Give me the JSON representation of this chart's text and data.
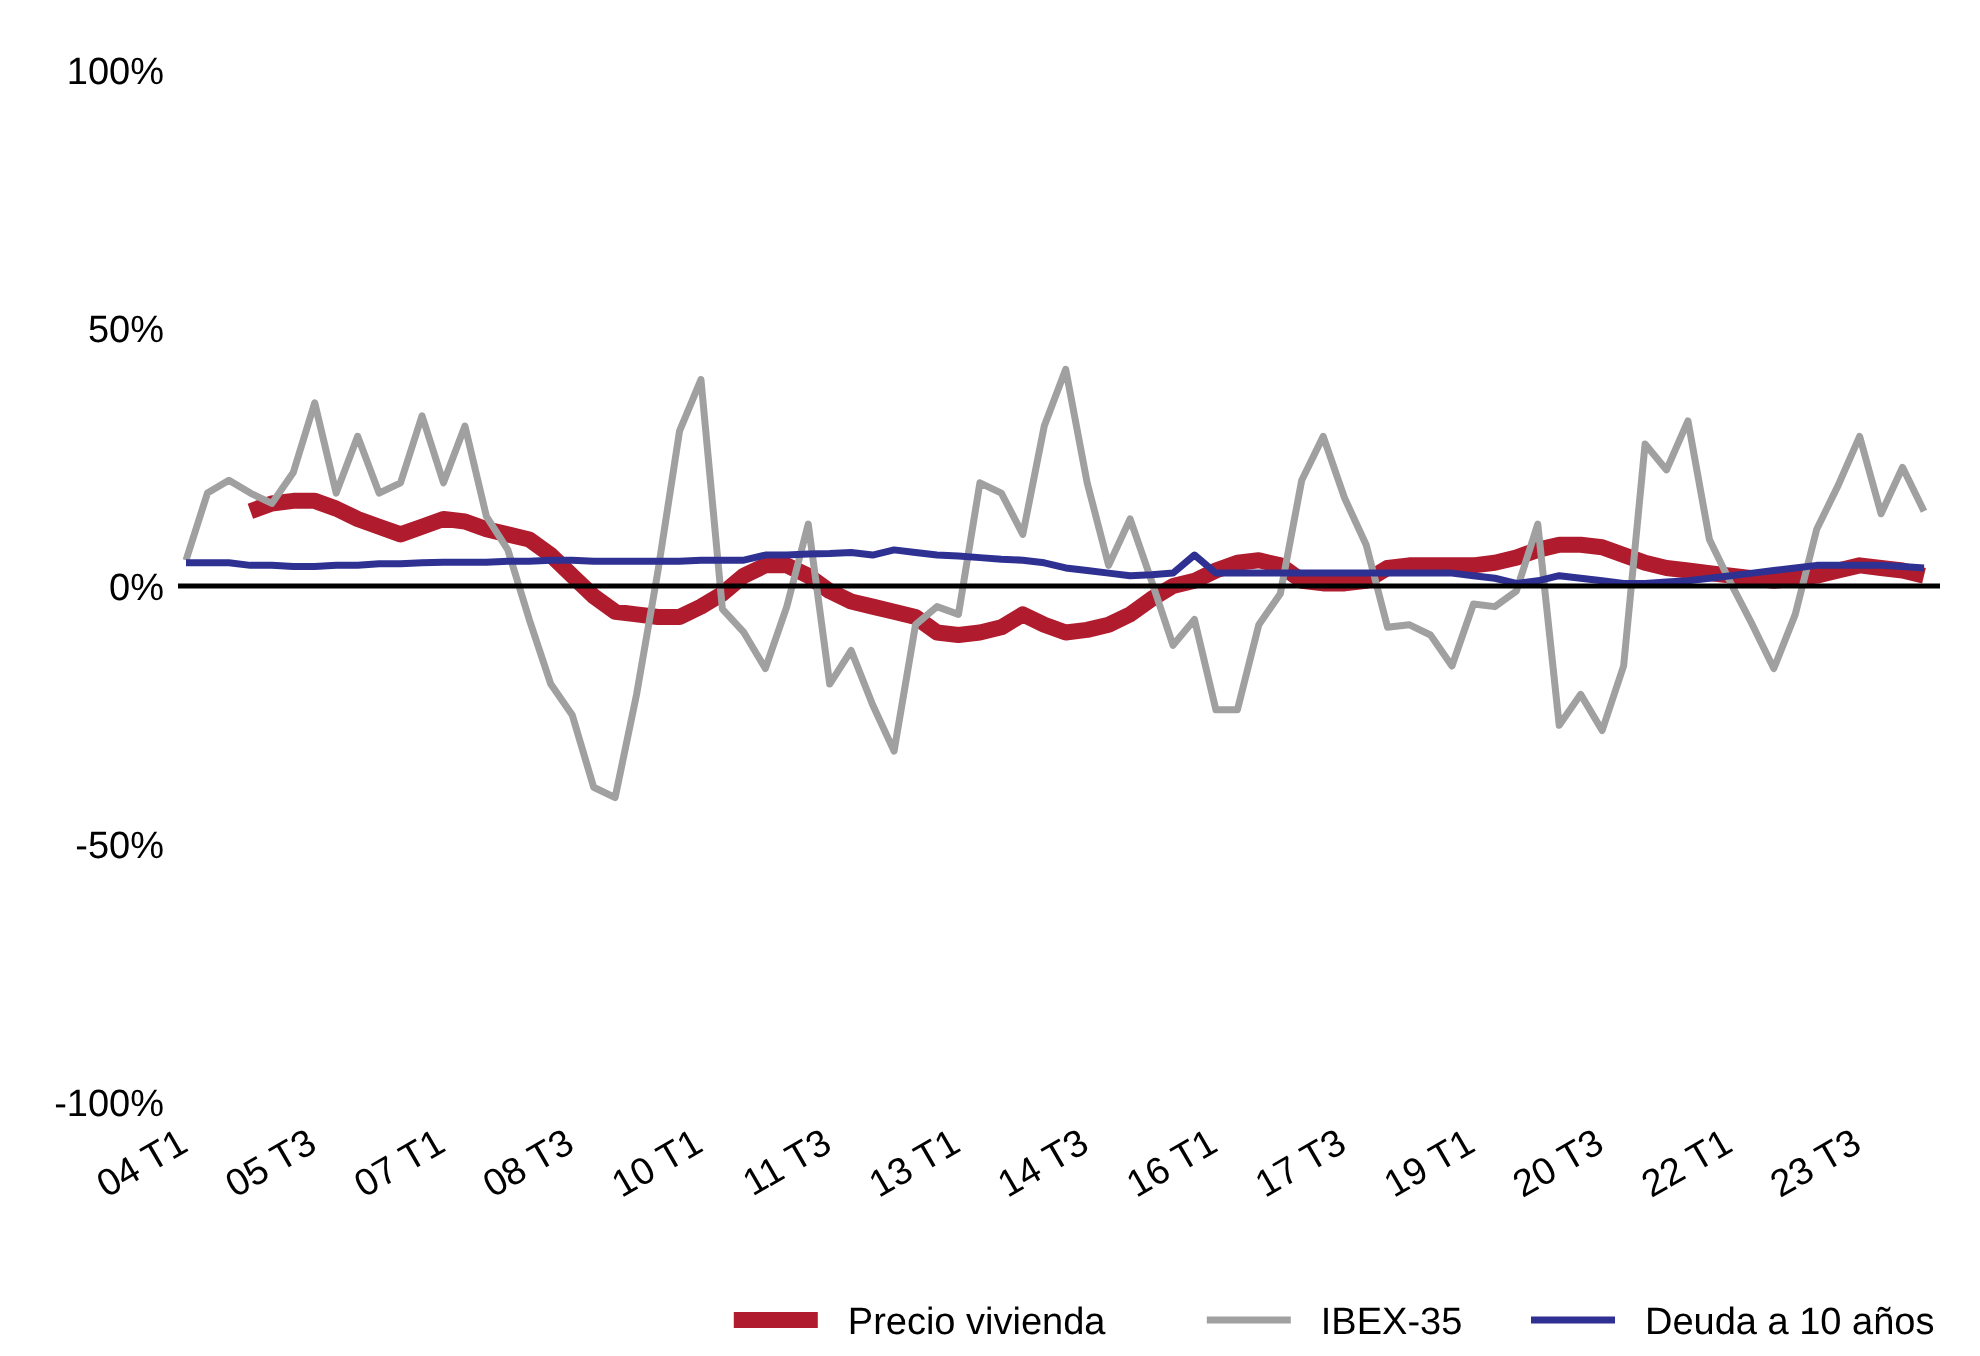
{
  "chart_data": {
    "type": "line",
    "categories": [
      "04 T1",
      null,
      null,
      null,
      null,
      null,
      "05 T3",
      null,
      null,
      null,
      null,
      null,
      "07 T1",
      null,
      null,
      null,
      null,
      null,
      "08 T3",
      null,
      null,
      null,
      null,
      null,
      "10 T1",
      null,
      null,
      null,
      null,
      null,
      "11 T3",
      null,
      null,
      null,
      null,
      null,
      "13 T1",
      null,
      null,
      null,
      null,
      null,
      "14 T3",
      null,
      null,
      null,
      null,
      null,
      "16 T1",
      null,
      null,
      null,
      null,
      null,
      "17 T3",
      null,
      null,
      null,
      null,
      null,
      "19 T1",
      null,
      null,
      null,
      null,
      null,
      "20 T3",
      null,
      null,
      null,
      null,
      null,
      "22 T1",
      null,
      null,
      null,
      null,
      null,
      "23 T3",
      null,
      null,
      null
    ],
    "series": [
      {
        "name": "Precio vivienda",
        "color": "#b01c2e",
        "values": [
          null,
          null,
          null,
          14.5,
          16,
          16.5,
          16.5,
          15,
          13,
          11.5,
          10,
          11.5,
          13,
          12.5,
          11,
          10,
          9,
          6,
          2,
          -2,
          -5,
          -5.5,
          -6,
          -6,
          -4,
          -1.5,
          2,
          4,
          4,
          2,
          -1,
          -3,
          -4,
          -5,
          -6,
          -9,
          -9.5,
          -9,
          -8,
          -5.5,
          -7.5,
          -9,
          -8.5,
          -7.5,
          -5.5,
          -2.5,
          0,
          1,
          3,
          4.5,
          5,
          4,
          1,
          0.5,
          0.5,
          1,
          3.5,
          4,
          4,
          4,
          4,
          4.5,
          5.5,
          7,
          8,
          8,
          7.5,
          6,
          4.5,
          3.5,
          3,
          2.5,
          2,
          1.5,
          1,
          1.5,
          2,
          3,
          4,
          3.5,
          3,
          2
        ]
      },
      {
        "name": "IBEX-35",
        "color": "#a0a0a0",
        "values": [
          5,
          18,
          20.5,
          18,
          16,
          22,
          35.5,
          18,
          29,
          18,
          20,
          33,
          20,
          31,
          13.5,
          7,
          -6.5,
          -19,
          -25,
          -39,
          -41,
          -21,
          3,
          30,
          40,
          -4.5,
          -9,
          -16,
          -4,
          12,
          -19,
          -12.5,
          -23,
          -32,
          -7.5,
          -4,
          -5.5,
          20,
          18,
          10,
          31,
          42,
          20,
          4,
          13,
          1,
          -11.5,
          -6.5,
          -24,
          -24,
          -7.5,
          -1.5,
          20.5,
          29,
          17,
          8,
          -8,
          -7.5,
          -9.5,
          -15.5,
          -3.5,
          -4,
          -1,
          12,
          -27,
          -21,
          -28,
          -15.5,
          27.5,
          22.5,
          32,
          9,
          0.5,
          -7.5,
          -16,
          -5.5,
          11,
          19.5,
          29,
          14,
          23,
          14.5
        ]
      },
      {
        "name": "Deuda a 10 años",
        "color": "#2e3192",
        "values": [
          4.5,
          4.5,
          4.5,
          4,
          4,
          3.8,
          3.8,
          4,
          4,
          4.3,
          4.3,
          4.5,
          4.6,
          4.6,
          4.6,
          4.8,
          4.8,
          5,
          5,
          4.8,
          4.8,
          4.8,
          4.8,
          4.8,
          5,
          5,
          5,
          6,
          6,
          6.2,
          6.3,
          6.5,
          6,
          7,
          6.5,
          6,
          5.8,
          5.5,
          5.2,
          5,
          4.5,
          3.5,
          3,
          2.5,
          2,
          2.2,
          2.5,
          6,
          2.5,
          2.5,
          2.5,
          2.5,
          2.5,
          2.5,
          2.5,
          2.5,
          2.5,
          2.5,
          2.5,
          2.5,
          2,
          1.5,
          0.5,
          1,
          2,
          1.5,
          1,
          0.5,
          0.5,
          0.8,
          1,
          1.5,
          2,
          2.5,
          3,
          3.5,
          4,
          4,
          4,
          4,
          3.8,
          3.5
        ]
      }
    ],
    "ylim": [
      -100,
      100
    ],
    "yticks": [
      {
        "value": -100,
        "label": "-100%"
      },
      {
        "value": -50,
        "label": "-50%"
      },
      {
        "value": 0,
        "label": "0%"
      },
      {
        "value": 50,
        "label": "50%"
      },
      {
        "value": 100,
        "label": "100%"
      }
    ],
    "ref_lines": [
      {
        "axis": "y",
        "value": 0,
        "color": "#000000"
      }
    ],
    "legend": "bottom",
    "marker": "none",
    "line_style": "solid"
  }
}
